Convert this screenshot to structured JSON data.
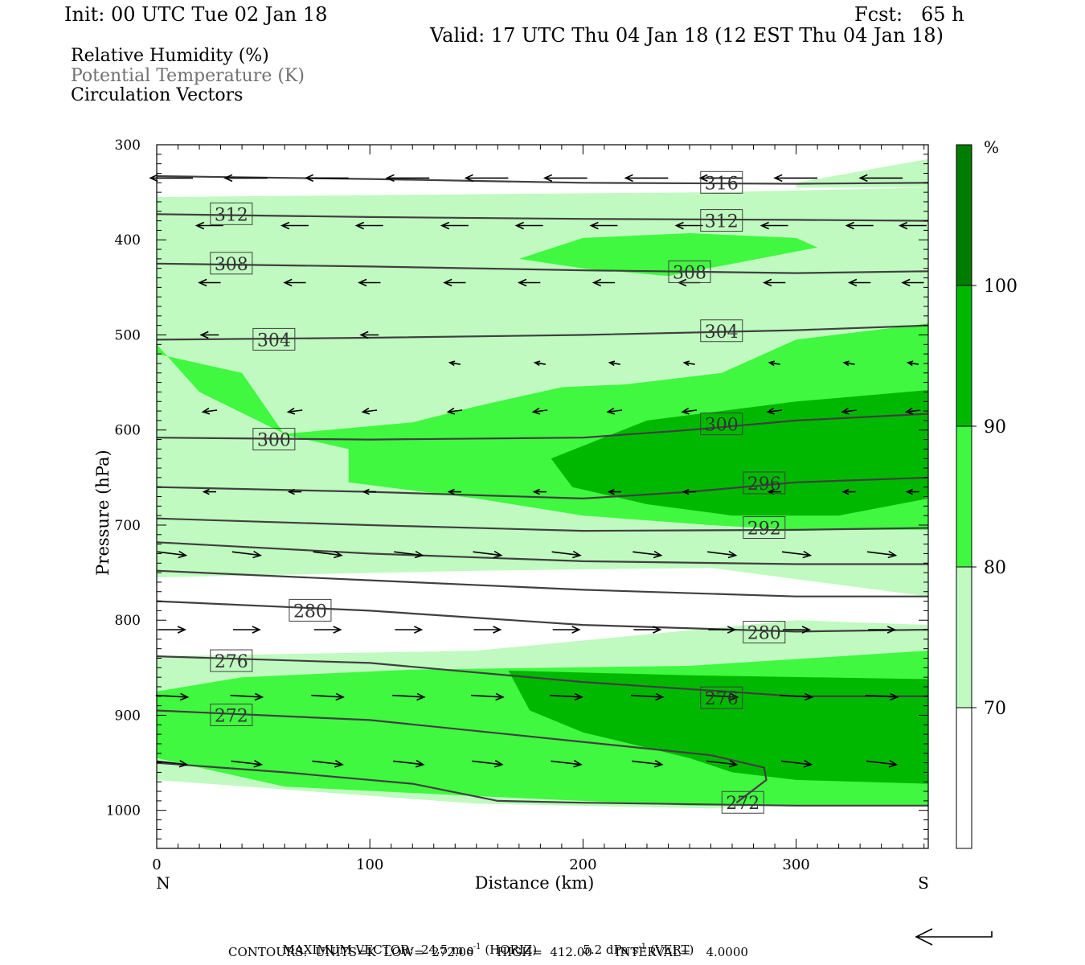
{
  "header": {
    "init": "Init: 00 UTC Tue 02 Jan 18",
    "fcst": "Fcst:   65 h",
    "valid": "Valid: 17 UTC Thu 04 Jan 18 (12 EST Thu 04 Jan 18)"
  },
  "legend_lines": {
    "rh": "Relative Humidity (%)",
    "theta": "Potential Temperature (K)",
    "vectors": "Circulation Vectors"
  },
  "footer": {
    "max_vector_label": "MAXIMUM VECTOR:",
    "max_horiz_value": "24.5 m s",
    "max_horiz_unit_exp": "-1",
    "max_horiz_suffix": "(HORIZ)",
    "max_vert_value": "5.2 dPa s",
    "max_vert_unit_exp": "-1",
    "max_vert_suffix": "(VERT)",
    "contours": "CONTOURS:  UNITS=K  LOW=  272.00      HIGH=  412.00      INTERVAL=    4.0000"
  },
  "colors": {
    "rh_70_80": "#c0fac0",
    "rh_80_90": "#40f840",
    "rh_90_100": "#00b800",
    "rh_100": "#007c00",
    "contour": "#404040",
    "vector": "#000000"
  },
  "chart_data": {
    "type": "cross-section",
    "xlabel": "Distance (km)",
    "ylabel": "Pressure (hPa)",
    "xlim": [
      0,
      362
    ],
    "ylim": [
      1040,
      300
    ],
    "x_ticks": [
      0,
      100,
      200,
      300
    ],
    "y_ticks": [
      300,
      400,
      500,
      600,
      700,
      800,
      900,
      1000
    ],
    "x_end_labels": {
      "left": "N",
      "right": "S"
    },
    "colorbar": {
      "unit": "%",
      "levels": [
        70,
        80,
        90,
        100
      ],
      "level_labels": [
        "70",
        "80",
        "90",
        "100"
      ]
    },
    "rh_fills": [
      {
        "class": "70-80",
        "points": [
          [
            0,
            355
          ],
          [
            150,
            352
          ],
          [
            260,
            350
          ],
          [
            362,
            345
          ],
          [
            362,
            775
          ],
          [
            260,
            745
          ],
          [
            150,
            748
          ],
          [
            0,
            755
          ]
        ]
      },
      {
        "class": "70-80",
        "points": [
          [
            0,
            838
          ],
          [
            150,
            832
          ],
          [
            300,
            800
          ],
          [
            362,
            805
          ],
          [
            362,
            985
          ],
          [
            260,
            998
          ],
          [
            150,
            993
          ],
          [
            0,
            968
          ]
        ]
      },
      {
        "class": "70-80",
        "points": [
          [
            300,
            340
          ],
          [
            362,
            315
          ],
          [
            362,
            345
          ],
          [
            300,
            345
          ]
        ]
      },
      {
        "class": "80-90",
        "points": [
          [
            170,
            420
          ],
          [
            200,
            398
          ],
          [
            250,
            393
          ],
          [
            300,
            398
          ],
          [
            310,
            408
          ],
          [
            240,
            438
          ],
          [
            200,
            430
          ]
        ]
      },
      {
        "class": "80-90",
        "points": [
          [
            0,
            520
          ],
          [
            40,
            540
          ],
          [
            60,
            605
          ],
          [
            90,
            620
          ],
          [
            90,
            655
          ],
          [
            150,
            672
          ],
          [
            200,
            690
          ],
          [
            260,
            700
          ],
          [
            300,
            705
          ],
          [
            362,
            705
          ],
          [
            362,
            488
          ],
          [
            300,
            505
          ],
          [
            265,
            540
          ],
          [
            220,
            552
          ],
          [
            190,
            555
          ],
          [
            150,
            575
          ],
          [
            120,
            592
          ],
          [
            60,
            604
          ],
          [
            20,
            560
          ],
          [
            0,
            510
          ]
        ]
      },
      {
        "class": "80-90",
        "points": [
          [
            0,
            875
          ],
          [
            40,
            860
          ],
          [
            120,
            852
          ],
          [
            250,
            848
          ],
          [
            362,
            832
          ],
          [
            362,
            995
          ],
          [
            250,
            995
          ],
          [
            150,
            985
          ],
          [
            60,
            975
          ],
          [
            0,
            945
          ]
        ]
      },
      {
        "class": "90-100",
        "points": [
          [
            185,
            630
          ],
          [
            230,
            590
          ],
          [
            300,
            570
          ],
          [
            362,
            558
          ],
          [
            362,
            672
          ],
          [
            320,
            690
          ],
          [
            270,
            690
          ],
          [
            230,
            678
          ],
          [
            195,
            660
          ]
        ]
      },
      {
        "class": "90-100",
        "points": [
          [
            165,
            853
          ],
          [
            250,
            858
          ],
          [
            362,
            862
          ],
          [
            362,
            972
          ],
          [
            300,
            968
          ],
          [
            270,
            960
          ],
          [
            250,
            945
          ],
          [
            200,
            918
          ],
          [
            175,
            895
          ]
        ]
      }
    ],
    "theta_contours": [
      {
        "label": "316",
        "points": [
          [
            0,
            333
          ],
          [
            100,
            336
          ],
          [
            200,
            340
          ],
          [
            300,
            341
          ],
          [
            362,
            340
          ]
        ],
        "label_at": [
          265,
          340
        ]
      },
      {
        "label": "312",
        "points": [
          [
            0,
            373
          ],
          [
            100,
            376
          ],
          [
            200,
            378
          ],
          [
            300,
            379
          ],
          [
            362,
            380
          ]
        ],
        "label_at": [
          35,
          373
        ]
      },
      {
        "label": "312",
        "points": [],
        "label_at": [
          265,
          380
        ]
      },
      {
        "label": "308",
        "points": [
          [
            0,
            425
          ],
          [
            100,
            428
          ],
          [
            200,
            432
          ],
          [
            300,
            435
          ],
          [
            362,
            433
          ]
        ],
        "label_at": [
          35,
          425
        ]
      },
      {
        "label": "308",
        "points": [],
        "label_at": [
          250,
          434
        ]
      },
      {
        "label": "304",
        "points": [
          [
            0,
            505
          ],
          [
            100,
            503
          ],
          [
            200,
            500
          ],
          [
            300,
            495
          ],
          [
            362,
            490
          ]
        ],
        "label_at": [
          55,
          505
        ]
      },
      {
        "label": "304",
        "points": [],
        "label_at": [
          265,
          496
        ]
      },
      {
        "label": "300",
        "points": [
          [
            0,
            608
          ],
          [
            100,
            610
          ],
          [
            200,
            608
          ],
          [
            250,
            600
          ],
          [
            300,
            590
          ],
          [
            362,
            583
          ]
        ],
        "label_at": [
          55,
          610
        ]
      },
      {
        "label": "300",
        "points": [],
        "label_at": [
          265,
          594
        ]
      },
      {
        "label": "296",
        "points": [
          [
            0,
            660
          ],
          [
            100,
            665
          ],
          [
            200,
            672
          ],
          [
            250,
            665
          ],
          [
            300,
            655
          ],
          [
            362,
            650
          ]
        ],
        "label_at": [
          285,
          656
        ]
      },
      {
        "label": "292",
        "points": [
          [
            0,
            693
          ],
          [
            100,
            700
          ],
          [
            200,
            706
          ],
          [
            300,
            705
          ],
          [
            362,
            703
          ]
        ],
        "label_at": [
          285,
          703
        ]
      },
      {
        "label": "",
        "points": [
          [
            0,
            718
          ],
          [
            100,
            730
          ],
          [
            200,
            738
          ],
          [
            300,
            741
          ],
          [
            362,
            741
          ]
        ],
        "label_at": null
      },
      {
        "label": "",
        "points": [
          [
            0,
            748
          ],
          [
            100,
            758
          ],
          [
            200,
            768
          ],
          [
            300,
            775
          ],
          [
            362,
            775
          ]
        ],
        "label_at": null
      },
      {
        "label": "280",
        "points": [
          [
            0,
            780
          ],
          [
            100,
            790
          ],
          [
            200,
            805
          ],
          [
            300,
            812
          ],
          [
            362,
            810
          ]
        ],
        "label_at": [
          72,
          790
        ]
      },
      {
        "label": "280",
        "points": [],
        "label_at": [
          285,
          813
        ]
      },
      {
        "label": "276",
        "points": [
          [
            0,
            838
          ],
          [
            100,
            845
          ],
          [
            200,
            865
          ],
          [
            300,
            880
          ],
          [
            362,
            880
          ]
        ],
        "label_at": [
          35,
          843
        ]
      },
      {
        "label": "276",
        "points": [],
        "label_at": [
          265,
          882
        ]
      },
      {
        "label": "272",
        "points": [
          [
            0,
            895
          ],
          [
            100,
            905
          ],
          [
            200,
            928
          ],
          [
            260,
            942
          ],
          [
            285,
            955
          ],
          [
            286,
            968
          ],
          [
            272,
            992
          ]
        ],
        "label_at": [
          35,
          900
        ]
      },
      {
        "label": "272",
        "points": [],
        "label_at": [
          275,
          992
        ]
      },
      {
        "label": "",
        "points": [
          [
            0,
            950
          ],
          [
            60,
            960
          ],
          [
            120,
            972
          ],
          [
            160,
            990
          ],
          [
            200,
            992
          ],
          [
            300,
            995
          ],
          [
            362,
            995
          ]
        ],
        "label_at": null
      }
    ],
    "vectors": [
      {
        "p": 335,
        "xs": [
          7,
          42,
          80,
          118,
          155,
          192,
          230,
          265,
          300,
          340
        ],
        "u": -24,
        "w": 0
      },
      {
        "p": 385,
        "xs": [
          25,
          65,
          100,
          140,
          175,
          210,
          250,
          290,
          330,
          355
        ],
        "u": -15,
        "w": 0
      },
      {
        "p": 445,
        "xs": [
          25,
          65,
          100,
          140,
          175,
          210,
          250,
          290,
          330,
          355
        ],
        "u": -12,
        "w": 0
      },
      {
        "p": 500,
        "xs": [
          25,
          100
        ],
        "u": -10,
        "w": 0
      },
      {
        "p": 530,
        "xs": [
          140,
          180,
          215,
          250,
          290,
          325,
          355
        ],
        "u": -6,
        "w": -1
      },
      {
        "p": 580,
        "xs": [
          25,
          65,
          100,
          140,
          180,
          215,
          250,
          290,
          325,
          355
        ],
        "u": -8,
        "w": 1
      },
      {
        "p": 665,
        "xs": [
          25,
          65,
          100,
          140,
          180,
          215,
          250,
          290,
          325,
          355
        ],
        "u": -7,
        "w": 0
      },
      {
        "p": 730,
        "xs": [
          7,
          42,
          80,
          118,
          155,
          192,
          230,
          265,
          300,
          340
        ],
        "u": 16,
        "w": 2
      },
      {
        "p": 810,
        "xs": [
          7,
          42,
          80,
          118,
          155,
          192,
          230,
          265,
          300,
          340
        ],
        "u": 15,
        "w": 0
      },
      {
        "p": 880,
        "xs": [
          7,
          42,
          80,
          118,
          155,
          192,
          230,
          265,
          300,
          340
        ],
        "u": 18,
        "w": 1
      },
      {
        "p": 950,
        "xs": [
          7,
          42,
          80,
          118,
          155,
          192,
          230,
          265,
          300,
          340
        ],
        "u": 17,
        "w": 2
      }
    ]
  }
}
